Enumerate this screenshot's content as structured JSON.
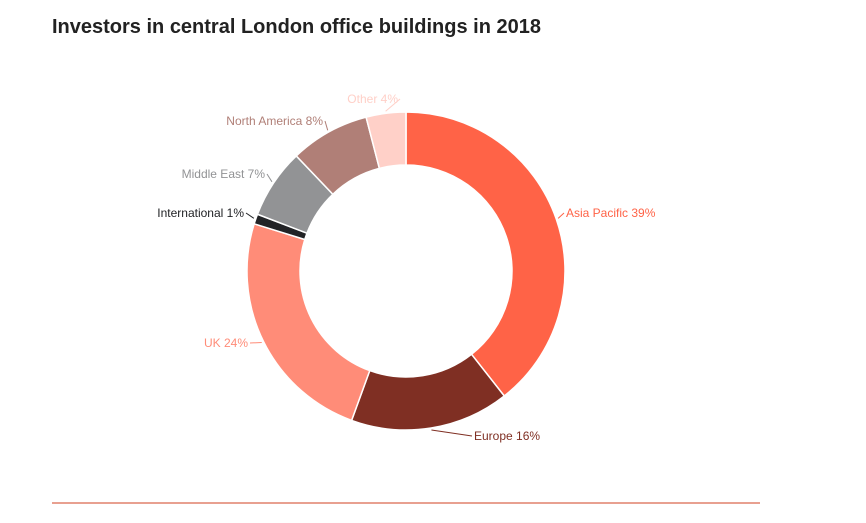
{
  "chart_data": {
    "type": "pie",
    "variant": "donut",
    "title": "Investors in central London office buildings in 2018",
    "unit": "%",
    "slices": [
      {
        "label": "Asia Pacific",
        "value": 39,
        "color": "#ff6347",
        "text": "Asia Pacific 39%"
      },
      {
        "label": "Europe",
        "value": 16,
        "color": "#7f2f23",
        "text": "Europe 16%"
      },
      {
        "label": "UK",
        "value": 24,
        "color": "#ff8c78",
        "text": "UK 24%"
      },
      {
        "label": "International",
        "value": 1,
        "color": "#222326",
        "text": "International 1%"
      },
      {
        "label": "Middle East",
        "value": 7,
        "color": "#929395",
        "text": "Middle East 7%"
      },
      {
        "label": "North America",
        "value": 8,
        "color": "#b07f77",
        "text": "North America 8%"
      },
      {
        "label": "Other",
        "value": 4,
        "color": "#ffd0c8",
        "text": "Other 4%"
      }
    ]
  }
}
